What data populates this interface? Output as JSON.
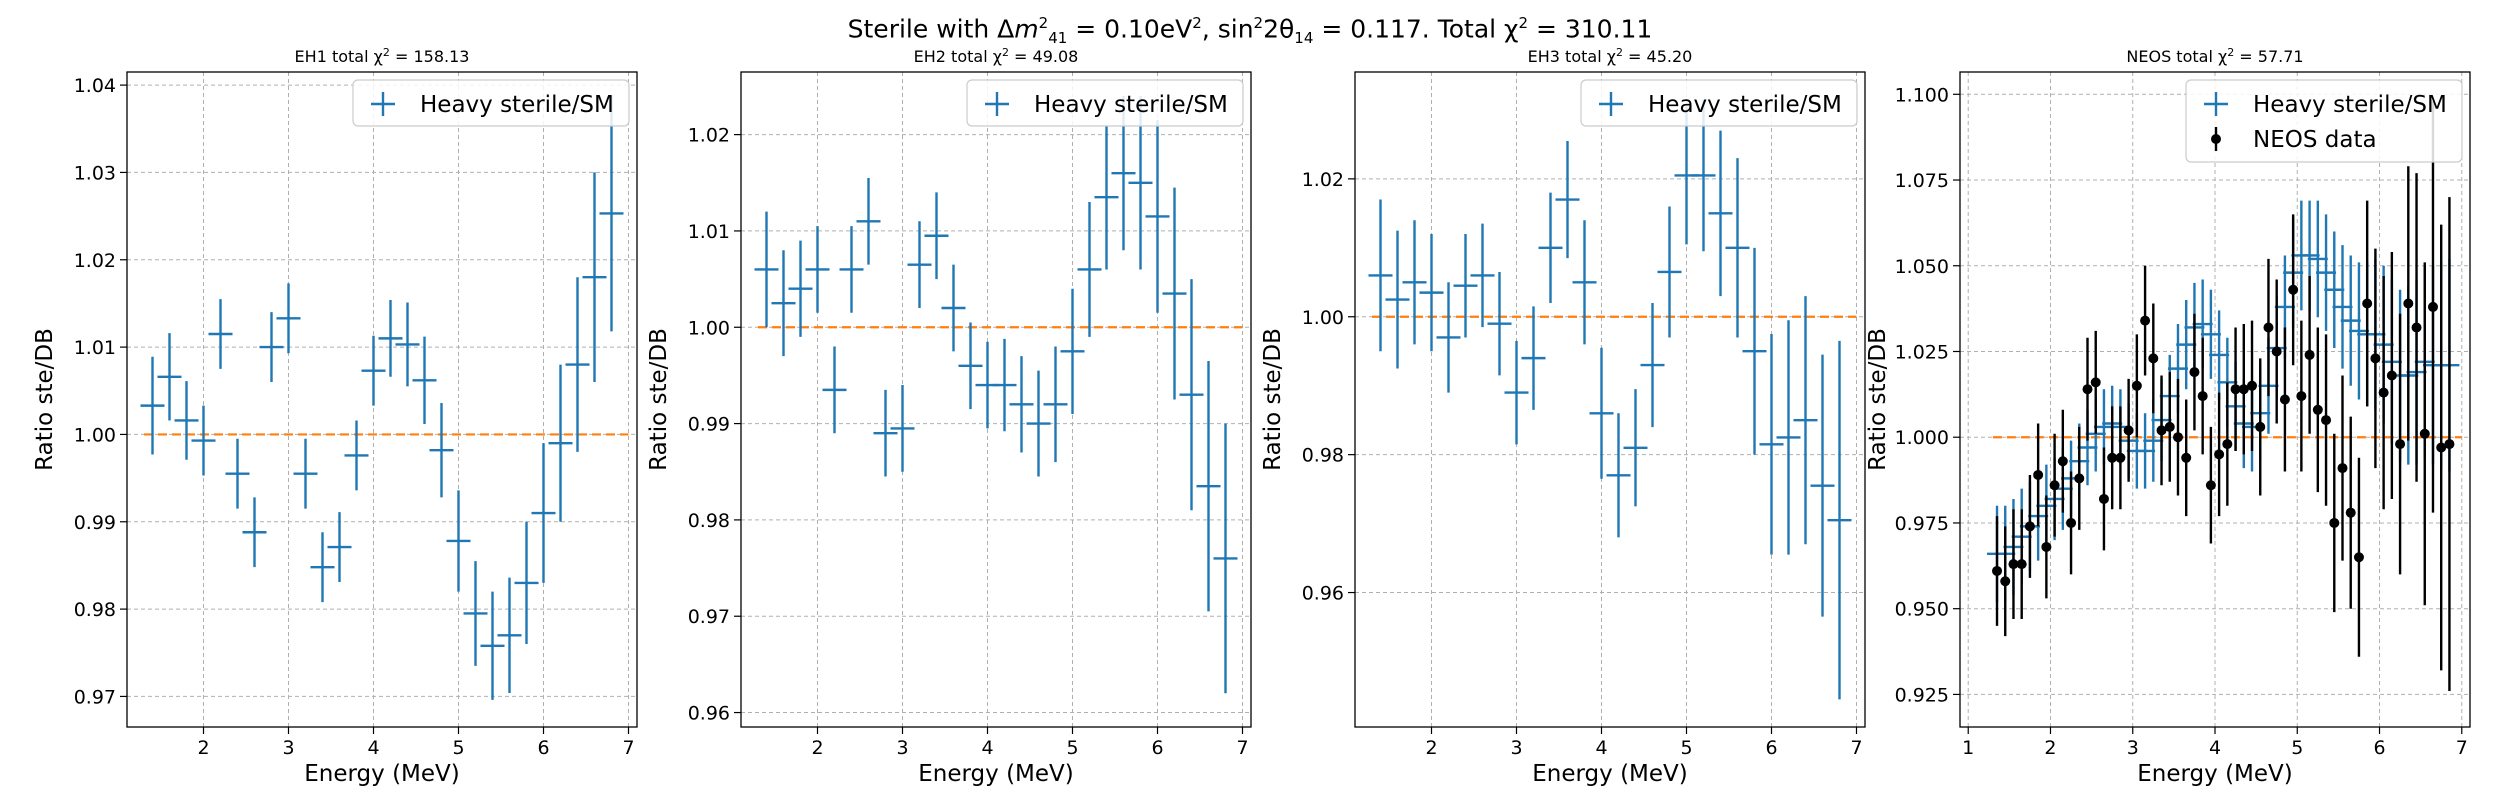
{
  "figure_title": {
    "prefix": "Sterile with Δ",
    "dm_symbol": "m",
    "dm_sup": "2",
    "dm_sub": "41",
    "dm_value": " = 0.10eV",
    "dm_unit_sup": "2",
    "angle_prefix": ", sin",
    "angle_sup": "2",
    "angle_mid": "2θ",
    "angle_sub": "14",
    "angle_value": " = 0.117. Total χ",
    "chi_sup": "2",
    "chi_value": " = 310.11"
  },
  "colors": {
    "model": "#1f77b4",
    "reference": "#ff7f0e",
    "neos": "#000000",
    "grid": "#b0b0b0"
  },
  "chart_data": [
    {
      "type": "scatter",
      "subtitle": "EH1 total χ² = 158.13",
      "xlabel": "Energy (MeV)",
      "ylabel": "Ratio ste/DB",
      "xlim": [
        1.1,
        7.1
      ],
      "ylim": [
        0.9665,
        1.0415
      ],
      "xticks": [
        2,
        3,
        4,
        5,
        6,
        7
      ],
      "yticks": [
        0.97,
        0.98,
        0.99,
        1.0,
        1.01,
        1.02,
        1.03,
        1.04
      ],
      "yprec": 2,
      "grid": true,
      "legend_position": "top-right",
      "legend": [
        "Heavy sterile/SM"
      ],
      "reference_line": {
        "y": 1.0,
        "x": [
          1.3,
          7.0
        ]
      },
      "series": [
        {
          "name": "Heavy sterile/SM",
          "style": "cross",
          "x": [
            1.4,
            1.6,
            1.8,
            2.0,
            2.2,
            2.4,
            2.6,
            2.8,
            3.0,
            3.2,
            3.4,
            3.6,
            3.8,
            4.0,
            4.2,
            4.4,
            4.6,
            4.8,
            5.0,
            5.2,
            5.4,
            5.6,
            5.8,
            6.0,
            6.2,
            6.4,
            6.6,
            6.8
          ],
          "y": [
            1.0033,
            1.0066,
            1.0016,
            0.9993,
            1.0115,
            0.9955,
            0.9888,
            1.01,
            1.0133,
            0.9955,
            0.9848,
            0.9871,
            0.9976,
            1.0073,
            1.011,
            1.0103,
            1.0062,
            0.9982,
            0.9878,
            0.9795,
            0.9758,
            0.977,
            0.983,
            0.991,
            0.999,
            1.008,
            1.018,
            1.0253
          ],
          "err": [
            0.0056,
            0.005,
            0.0045,
            0.004,
            0.004,
            0.004,
            0.004,
            0.004,
            0.004,
            0.004,
            0.004,
            0.004,
            0.004,
            0.004,
            0.0044,
            0.0048,
            0.005,
            0.0054,
            0.0058,
            0.006,
            0.0062,
            0.0066,
            0.007,
            0.008,
            0.009,
            0.01,
            0.012,
            0.0135
          ]
        }
      ]
    },
    {
      "type": "scatter",
      "subtitle": "EH2 total χ² = 49.08",
      "xlabel": "Energy (MeV)",
      "ylabel": "Ratio ste/DB",
      "xlim": [
        1.1,
        7.1
      ],
      "ylim": [
        0.9585,
        1.0265
      ],
      "xticks": [
        2,
        3,
        4,
        5,
        6,
        7
      ],
      "yticks": [
        0.96,
        0.97,
        0.98,
        0.99,
        1.0,
        1.01,
        1.02
      ],
      "yprec": 2,
      "grid": true,
      "legend_position": "top-right",
      "legend": [
        "Heavy sterile/SM"
      ],
      "reference_line": {
        "y": 1.0,
        "x": [
          1.3,
          7.0
        ]
      },
      "series": [
        {
          "name": "Heavy sterile/SM",
          "style": "cross",
          "x": [
            1.4,
            1.6,
            1.8,
            2.0,
            2.2,
            2.4,
            2.6,
            2.8,
            3.0,
            3.2,
            3.4,
            3.6,
            3.8,
            4.0,
            4.2,
            4.4,
            4.6,
            4.8,
            5.0,
            5.2,
            5.4,
            5.6,
            5.8,
            6.0,
            6.2,
            6.4,
            6.6,
            6.8
          ],
          "y": [
            1.006,
            1.0025,
            1.004,
            1.006,
            0.9935,
            1.006,
            1.011,
            0.989,
            0.9895,
            1.0065,
            1.0095,
            1.002,
            0.996,
            0.994,
            0.994,
            0.992,
            0.99,
            0.992,
            0.9975,
            1.006,
            1.0135,
            1.016,
            1.015,
            1.0115,
            1.0035,
            0.993,
            0.9835,
            0.976
          ],
          "err": [
            0.006,
            0.0055,
            0.005,
            0.0045,
            0.0045,
            0.0045,
            0.0045,
            0.0045,
            0.0045,
            0.0045,
            0.0045,
            0.0045,
            0.0045,
            0.0045,
            0.0048,
            0.005,
            0.0055,
            0.006,
            0.0065,
            0.007,
            0.0075,
            0.008,
            0.009,
            0.01,
            0.011,
            0.012,
            0.013,
            0.014
          ]
        }
      ]
    },
    {
      "type": "scatter",
      "subtitle": "EH3 total χ² = 45.20",
      "xlabel": "Energy (MeV)",
      "ylabel": "Ratio ste/DB",
      "xlim": [
        1.1,
        7.1
      ],
      "ylim": [
        0.9405,
        1.0355
      ],
      "xticks": [
        2,
        3,
        4,
        5,
        6,
        7
      ],
      "yticks": [
        0.96,
        0.98,
        1.0,
        1.02
      ],
      "yprec": 2,
      "grid": true,
      "legend_position": "top-right",
      "legend": [
        "Heavy sterile/SM"
      ],
      "reference_line": {
        "y": 1.0,
        "x": [
          1.3,
          7.0
        ]
      },
      "series": [
        {
          "name": "Heavy sterile/SM",
          "style": "cross",
          "x": [
            1.4,
            1.6,
            1.8,
            2.0,
            2.2,
            2.4,
            2.6,
            2.8,
            3.0,
            3.2,
            3.4,
            3.6,
            3.8,
            4.0,
            4.2,
            4.4,
            4.6,
            4.8,
            5.0,
            5.2,
            5.4,
            5.6,
            5.8,
            6.0,
            6.2,
            6.4,
            6.6,
            6.8
          ],
          "y": [
            1.006,
            1.0025,
            1.005,
            1.0035,
            0.997,
            1.0045,
            1.006,
            0.999,
            0.989,
            0.994,
            1.01,
            1.017,
            1.005,
            0.986,
            0.977,
            0.981,
            0.993,
            1.0065,
            1.0205,
            1.0205,
            1.015,
            1.01,
            0.995,
            0.9815,
            0.9825,
            0.985,
            0.9755,
            0.9705
          ],
          "err": [
            0.011,
            0.01,
            0.009,
            0.0085,
            0.008,
            0.0075,
            0.0075,
            0.0075,
            0.0075,
            0.0075,
            0.008,
            0.0085,
            0.009,
            0.0095,
            0.009,
            0.0085,
            0.009,
            0.0095,
            0.01,
            0.011,
            0.012,
            0.013,
            0.015,
            0.016,
            0.017,
            0.018,
            0.019,
            0.026
          ]
        }
      ]
    },
    {
      "type": "scatter",
      "subtitle": "NEOS total χ² = 57.71",
      "xlabel": "Energy (MeV)",
      "ylabel": "Ratio ste/DB",
      "xlim": [
        0.9,
        7.1
      ],
      "ylim": [
        0.9155,
        1.1065
      ],
      "xticks": [
        1,
        2,
        3,
        4,
        5,
        6,
        7
      ],
      "yticks": [
        0.925,
        0.95,
        0.975,
        1.0,
        1.025,
        1.05,
        1.075,
        1.1
      ],
      "yprec": 3,
      "grid": true,
      "legend_position": "top-right",
      "legend": [
        "Heavy sterile/SM",
        "NEOS data"
      ],
      "reference_line": {
        "y": 1.0,
        "x": [
          1.3,
          7.0
        ]
      },
      "series": [
        {
          "name": "Heavy sterile/SM",
          "style": "cross",
          "x": [
            1.35,
            1.45,
            1.55,
            1.65,
            1.75,
            1.85,
            1.95,
            2.05,
            2.15,
            2.25,
            2.35,
            2.45,
            2.55,
            2.65,
            2.75,
            2.85,
            2.95,
            3.05,
            3.15,
            3.25,
            3.35,
            3.45,
            3.55,
            3.65,
            3.75,
            3.85,
            3.95,
            4.05,
            4.15,
            4.25,
            4.35,
            4.45,
            4.55,
            4.65,
            4.75,
            4.85,
            4.95,
            5.05,
            5.15,
            5.25,
            5.35,
            5.45,
            5.55,
            5.65,
            5.75,
            5.85,
            5.95,
            6.05,
            6.15,
            6.25,
            6.35,
            6.45,
            6.55,
            6.65,
            6.75,
            6.85
          ],
          "y": [
            0.966,
            0.966,
            0.968,
            0.971,
            0.974,
            0.977,
            0.98,
            0.982,
            0.985,
            0.988,
            0.993,
            0.997,
            1.001,
            1.003,
            1.004,
            1.003,
            0.999,
            0.996,
            0.996,
            0.999,
            1.005,
            1.012,
            1.02,
            1.027,
            1.032,
            1.033,
            1.03,
            1.024,
            1.016,
            1.009,
            1.004,
            1.003,
            1.007,
            1.015,
            1.026,
            1.038,
            1.048,
            1.053,
            1.053,
            1.052,
            1.048,
            1.043,
            1.038,
            1.034,
            1.031,
            1.03,
            1.03,
            1.027,
            1.022,
            1.018,
            1.018,
            1.019,
            1.022,
            1.021,
            1.021,
            1.021
          ],
          "err": [
            0.014,
            0.014,
            0.014,
            0.014,
            0.013,
            0.013,
            0.012,
            0.012,
            0.012,
            0.011,
            0.011,
            0.011,
            0.011,
            0.011,
            0.011,
            0.011,
            0.011,
            0.011,
            0.011,
            0.012,
            0.012,
            0.012,
            0.013,
            0.013,
            0.013,
            0.013,
            0.013,
            0.013,
            0.013,
            0.013,
            0.013,
            0.013,
            0.014,
            0.014,
            0.015,
            0.015,
            0.016,
            0.016,
            0.016,
            0.017,
            0.017,
            0.017,
            0.018,
            0.019,
            0.02,
            0.021,
            0.022,
            0.023,
            0.024,
            0.025,
            0.026,
            0.027,
            0.028,
            0.029,
            0.03,
            0.031
          ]
        },
        {
          "name": "NEOS data",
          "style": "dot",
          "x": [
            1.35,
            1.45,
            1.55,
            1.65,
            1.75,
            1.85,
            1.95,
            2.05,
            2.15,
            2.25,
            2.35,
            2.45,
            2.55,
            2.65,
            2.75,
            2.85,
            2.95,
            3.05,
            3.15,
            3.25,
            3.35,
            3.45,
            3.55,
            3.65,
            3.75,
            3.85,
            3.95,
            4.05,
            4.15,
            4.25,
            4.35,
            4.45,
            4.55,
            4.65,
            4.75,
            4.85,
            4.95,
            5.05,
            5.15,
            5.25,
            5.35,
            5.45,
            5.55,
            5.65,
            5.75,
            5.85,
            5.95,
            6.05,
            6.15,
            6.25,
            6.35,
            6.45,
            6.55,
            6.65,
            6.75,
            6.85
          ],
          "y": [
            0.961,
            0.958,
            0.963,
            0.963,
            0.974,
            0.989,
            0.968,
            0.986,
            0.993,
            0.975,
            0.988,
            1.014,
            1.016,
            0.982,
            0.994,
            0.994,
            1.002,
            1.015,
            1.034,
            1.023,
            1.002,
            1.003,
            1.0,
            0.994,
            1.019,
            1.012,
            0.986,
            0.995,
            0.998,
            1.014,
            1.014,
            1.015,
            1.003,
            1.032,
            1.025,
            1.011,
            1.043,
            1.012,
            1.024,
            1.008,
            1.005,
            0.975,
            0.991,
            0.978,
            0.965,
            1.039,
            1.023,
            1.013,
            1.018,
            0.998,
            1.039,
            1.032,
            1.001,
            1.038,
            0.997,
            0.998
          ],
          "err": [
            0.016,
            0.016,
            0.016,
            0.016,
            0.015,
            0.015,
            0.015,
            0.015,
            0.015,
            0.015,
            0.015,
            0.015,
            0.015,
            0.015,
            0.015,
            0.015,
            0.015,
            0.015,
            0.016,
            0.016,
            0.016,
            0.016,
            0.017,
            0.017,
            0.017,
            0.017,
            0.017,
            0.018,
            0.018,
            0.018,
            0.019,
            0.019,
            0.02,
            0.02,
            0.021,
            0.021,
            0.022,
            0.022,
            0.023,
            0.024,
            0.025,
            0.026,
            0.027,
            0.028,
            0.029,
            0.03,
            0.032,
            0.034,
            0.036,
            0.038,
            0.04,
            0.045,
            0.05,
            0.06,
            0.065,
            0.072
          ]
        }
      ]
    }
  ]
}
